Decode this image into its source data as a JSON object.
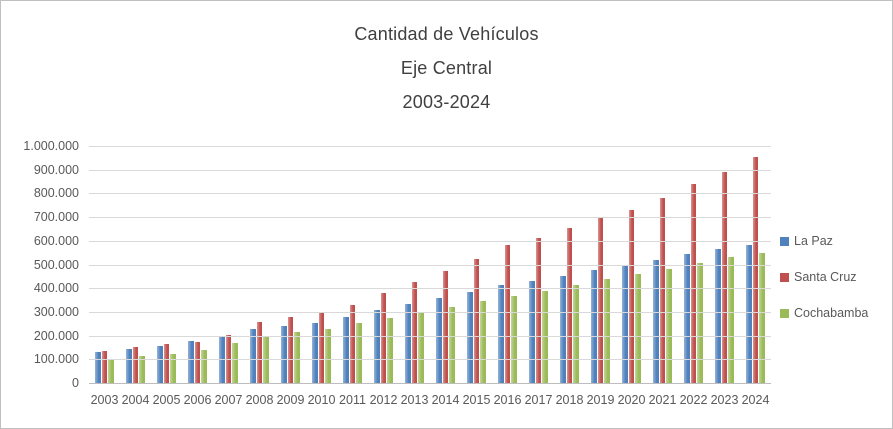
{
  "chart": {
    "title_lines": [
      "Cantidad de Vehículos",
      "Eje Central",
      "2003-2024"
    ],
    "title_color": "#404040",
    "axis_text_color": "#595959",
    "gridline_color": "#d9d9d9",
    "background": "#ffffff",
    "border_color": "#bfbfbf"
  },
  "chart_data": {
    "type": "bar",
    "title": "Cantidad de Vehículos Eje Central 2003-2024",
    "xlabel": "",
    "ylabel": "",
    "ylim": [
      0,
      1000000
    ],
    "ytick_step": 100000,
    "ytick_labels": [
      "0",
      "100.000",
      "200.000",
      "300.000",
      "400.000",
      "500.000",
      "600.000",
      "700.000",
      "800.000",
      "900.000",
      "1.000.000"
    ],
    "grid": true,
    "legend_position": "right",
    "categories": [
      "2003",
      "2004",
      "2005",
      "2006",
      "2007",
      "2008",
      "2009",
      "2010",
      "2011",
      "2012",
      "2013",
      "2014",
      "2015",
      "2016",
      "2017",
      "2018",
      "2019",
      "2020",
      "2021",
      "2022",
      "2023",
      "2024"
    ],
    "series": [
      {
        "name": "La Paz",
        "color": "#4f81bd",
        "values": [
          131000,
          144000,
          156000,
          178000,
          195000,
          228000,
          240000,
          252000,
          278000,
          308000,
          335000,
          360000,
          385000,
          413000,
          432000,
          452000,
          477000,
          497000,
          520000,
          544000,
          566000,
          583000
        ]
      },
      {
        "name": "Santa Cruz",
        "color": "#c0504d",
        "values": [
          134000,
          150000,
          163000,
          171000,
          203000,
          257000,
          279000,
          297000,
          330000,
          378000,
          427000,
          472000,
          523000,
          583000,
          613000,
          652000,
          695000,
          730000,
          780000,
          840000,
          890000,
          953000
        ]
      },
      {
        "name": "Cochabamba",
        "color": "#9bbb59",
        "values": [
          99000,
          112000,
          123000,
          140000,
          167000,
          200000,
          215000,
          228000,
          255000,
          276000,
          298000,
          320000,
          344000,
          366000,
          390000,
          415000,
          440000,
          460000,
          483000,
          505000,
          530000,
          548000
        ]
      }
    ]
  }
}
